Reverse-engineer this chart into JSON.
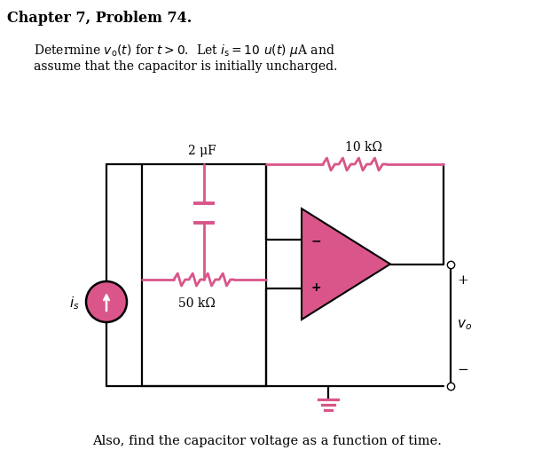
{
  "title": "Chapter 7, Problem 74.",
  "desc1": "Determine v",
  "desc1b": "o",
  "desc1c": "(t) for t > 0.  Let i",
  "desc1d": "s",
  "desc1e": " = 10 u(t) μA and",
  "desc2": "assume that the capacitor is initially uncharged.",
  "cap_label": "2 μF",
  "res1_label": "50 kΩ",
  "res2_label": "10 kΩ",
  "source_label": "i",
  "source_sub": "s",
  "output_label": "v",
  "output_sub": "o",
  "plus_label": "+",
  "minus_label": "−",
  "bg_color": "#ffffff",
  "wire_color": "#000000",
  "pink_fill": "#d9558a",
  "pink_line": "#d9558a",
  "footer": "Also, find the capacitor voltage as a function of time.",
  "lw_wire": 1.6,
  "lw_comp": 2.0
}
